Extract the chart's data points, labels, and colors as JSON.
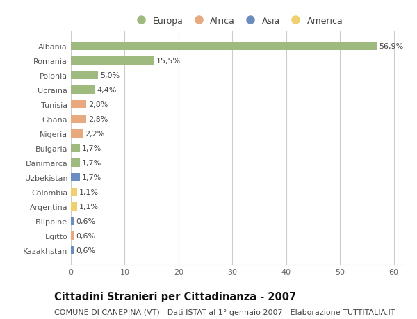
{
  "countries": [
    "Albania",
    "Romania",
    "Polonia",
    "Ucraina",
    "Tunisia",
    "Ghana",
    "Nigeria",
    "Bulgaria",
    "Danimarca",
    "Uzbekistan",
    "Colombia",
    "Argentina",
    "Filippine",
    "Egitto",
    "Kazakhstan"
  ],
  "values": [
    56.9,
    15.5,
    5.0,
    4.4,
    2.8,
    2.8,
    2.2,
    1.7,
    1.7,
    1.7,
    1.1,
    1.1,
    0.6,
    0.6,
    0.6
  ],
  "labels": [
    "56,9%",
    "15,5%",
    "5,0%",
    "4,4%",
    "2,8%",
    "2,8%",
    "2,2%",
    "1,7%",
    "1,7%",
    "1,7%",
    "1,1%",
    "1,1%",
    "0,6%",
    "0,6%",
    "0,6%"
  ],
  "continents": [
    "Europa",
    "Europa",
    "Europa",
    "Europa",
    "Africa",
    "Africa",
    "Africa",
    "Europa",
    "Europa",
    "Asia",
    "America",
    "America",
    "Asia",
    "Africa",
    "Asia"
  ],
  "continent_colors": {
    "Europa": "#9eba7e",
    "Africa": "#e8a97e",
    "Asia": "#6b8cbf",
    "America": "#f0cf6e"
  },
  "legend_order": [
    "Europa",
    "Africa",
    "Asia",
    "America"
  ],
  "title": "Cittadini Stranieri per Cittadinanza - 2007",
  "subtitle": "COMUNE DI CANEPINA (VT) - Dati ISTAT al 1° gennaio 2007 - Elaborazione TUTTITALIA.IT",
  "xlim": [
    0,
    62
  ],
  "xticks": [
    0,
    10,
    20,
    30,
    40,
    50,
    60
  ],
  "background_color": "#ffffff",
  "grid_color": "#cccccc",
  "bar_height": 0.55,
  "title_fontsize": 10.5,
  "subtitle_fontsize": 8,
  "label_fontsize": 8,
  "tick_fontsize": 8,
  "legend_fontsize": 9
}
